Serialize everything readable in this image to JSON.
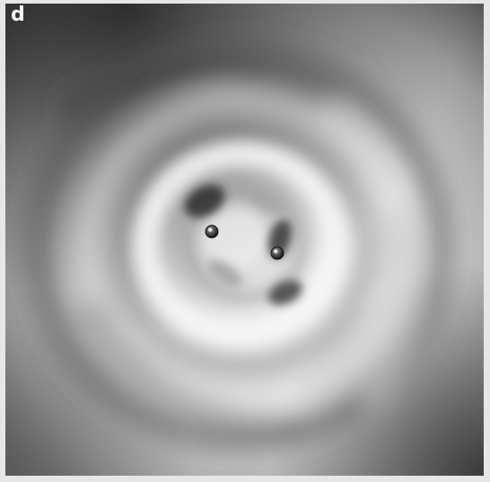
{
  "figure": {
    "panel_label": "d"
  },
  "image": {
    "description_kind": "grayscale microscopy-style photograph",
    "tones": {
      "background_frame": "#e6e6e6",
      "dark": "#3a3a3a",
      "mid": "#8c8c8c",
      "light": "#f4f4f4"
    }
  }
}
